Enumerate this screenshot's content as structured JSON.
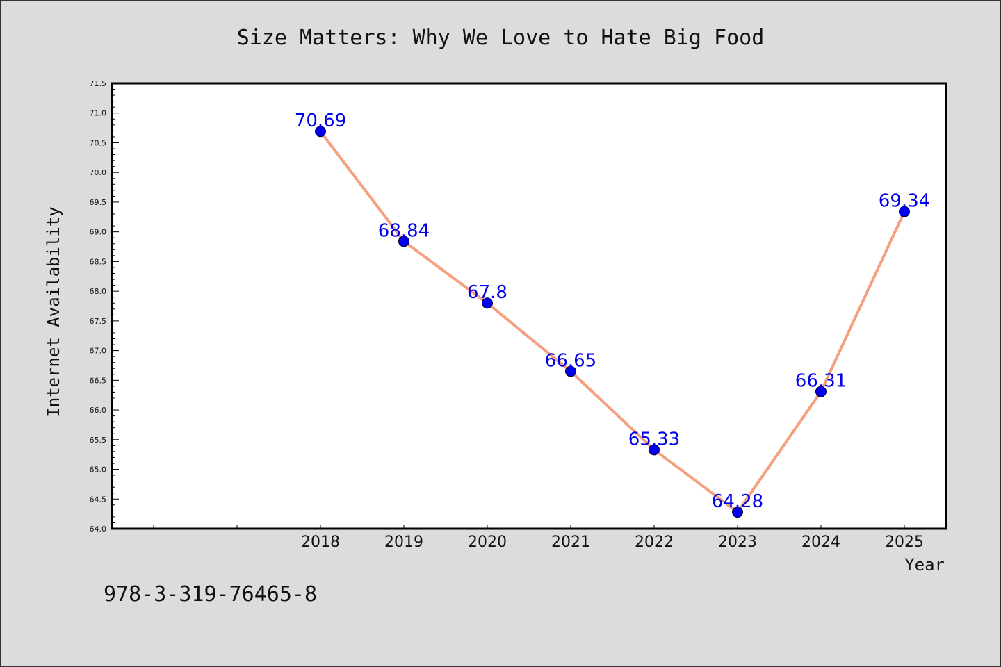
{
  "chart_data": {
    "type": "line",
    "title": "Size Matters: Why We Love to Hate Big Food",
    "xlabel": "Year",
    "ylabel": "Internet Availability",
    "x": [
      2018,
      2019,
      2020,
      2021,
      2022,
      2023,
      2024,
      2025
    ],
    "values": [
      70.69,
      68.84,
      67.8,
      66.65,
      65.33,
      64.28,
      66.31,
      69.34
    ],
    "data_labels": [
      "70.69",
      "68.84",
      "67.8",
      "66.65",
      "65.33",
      "64.28",
      "66.31",
      "69.34"
    ],
    "x_tick_labels": [
      "2018",
      "2019",
      "2020",
      "2021",
      "2022",
      "2023",
      "2024",
      "2025"
    ],
    "y_tick_labels": [
      "64.0",
      "64.5",
      "65.0",
      "65.5",
      "66.0",
      "66.5",
      "67.0",
      "67.5",
      "68.0",
      "68.5",
      "69.0",
      "69.5",
      "70.0",
      "70.5",
      "71.0",
      "71.5"
    ],
    "ylim": [
      64.0,
      71.5
    ],
    "xlim": [
      2015.5,
      2025.5
    ],
    "grid": false,
    "line_color": "#f4a07e",
    "marker_color": "#0000ee",
    "label_color": "#0000ee"
  },
  "footer": {
    "isbn": "978-3-319-76465-8"
  }
}
